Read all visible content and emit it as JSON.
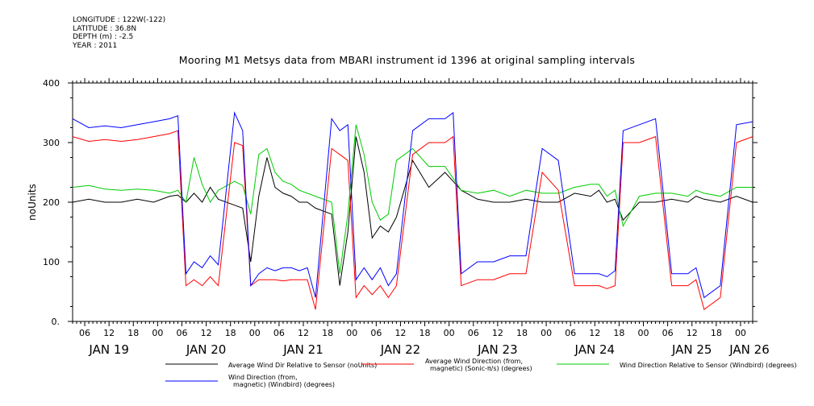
{
  "meta": {
    "longitude": "LONGITUDE : 122W(-122)",
    "latitude": "LATITUDE : 36.8N",
    "depth": "DEPTH (m) : -2.5",
    "year": "YEAR : 2011"
  },
  "chart_data": {
    "type": "line",
    "title": "Mooring M1 Metsys data from MBARI instrument id 1396 at original sampling intervals",
    "ylabel": "noUnits",
    "xlabel": "",
    "ylim": [
      0,
      400
    ],
    "y_ticks": [
      0,
      100,
      200,
      300,
      400
    ],
    "y_tick_labels": [
      "0.",
      "100",
      "200",
      "300",
      "400"
    ],
    "x_domain_hours": [
      0,
      168
    ],
    "hour_ticks": [
      "06",
      "12",
      "18",
      "00"
    ],
    "date_labels": [
      "JAN 19",
      "JAN 20",
      "JAN 21",
      "JAN 22",
      "JAN 23",
      "JAN 24",
      "JAN 25",
      "JAN 26"
    ],
    "legend": [
      {
        "label": "Average Wind Dir Relative to Sensor (noUnits)",
        "color": "#000000"
      },
      {
        "label": "Average Wind Direction (from, magnetic) (Sonic-π/s) (degrees)",
        "color": "#ff0000"
      },
      {
        "label": "Wind Direction Relative to Sensor (Windbird) (degrees)",
        "color": "#00cc00"
      },
      {
        "label": "Wind Direction (from, magnetic) (Windbird) (degrees)",
        "color": "#0000ff"
      }
    ],
    "series": [
      {
        "name": "Average Wind Dir Relative to Sensor (noUnits)",
        "color": "#000000",
        "x": [
          0,
          4,
          8,
          12,
          16,
          20,
          24,
          26,
          28,
          30,
          32,
          34,
          36,
          40,
          42,
          44,
          46,
          48,
          50,
          52,
          54,
          56,
          58,
          60,
          64,
          66,
          68,
          70,
          72,
          74,
          76,
          78,
          80,
          84,
          88,
          92,
          94,
          96,
          100,
          104,
          108,
          112,
          116,
          120,
          124,
          128,
          130,
          132,
          134,
          136,
          140,
          144,
          148,
          152,
          154,
          156,
          160,
          164,
          168
        ],
        "y": [
          200,
          205,
          200,
          200,
          205,
          200,
          210,
          212,
          200,
          215,
          200,
          225,
          205,
          195,
          190,
          100,
          210,
          275,
          225,
          215,
          210,
          200,
          200,
          190,
          180,
          60,
          150,
          310,
          250,
          140,
          160,
          150,
          175,
          270,
          225,
          250,
          235,
          220,
          205,
          200,
          200,
          205,
          200,
          200,
          215,
          210,
          220,
          200,
          205,
          170,
          200,
          200,
          205,
          200,
          210,
          205,
          200,
          210,
          200
        ]
      },
      {
        "name": "Average Wind Direction (from, magnetic) (Sonic-π/s) (degrees)",
        "color": "#ff0000",
        "x": [
          0,
          4,
          8,
          12,
          16,
          20,
          24,
          26,
          28,
          30,
          32,
          34,
          36,
          40,
          42,
          44,
          46,
          48,
          50,
          52,
          54,
          56,
          58,
          60,
          64,
          66,
          68,
          70,
          72,
          74,
          76,
          78,
          80,
          84,
          88,
          92,
          94,
          96,
          100,
          104,
          108,
          112,
          116,
          120,
          124,
          128,
          130,
          132,
          134,
          136,
          140,
          144,
          148,
          152,
          154,
          156,
          160,
          164,
          168
        ],
        "y": [
          310,
          302,
          305,
          302,
          305,
          310,
          315,
          320,
          60,
          70,
          60,
          75,
          60,
          300,
          295,
          60,
          70,
          70,
          70,
          68,
          70,
          70,
          70,
          20,
          290,
          280,
          270,
          40,
          60,
          45,
          60,
          40,
          60,
          280,
          300,
          300,
          310,
          60,
          70,
          70,
          80,
          80,
          250,
          220,
          60,
          60,
          60,
          55,
          60,
          300,
          300,
          310,
          60,
          60,
          70,
          20,
          40,
          300,
          310
        ]
      },
      {
        "name": "Wind Direction Relative to Sensor (Windbird) (degrees)",
        "color": "#00cc00",
        "x": [
          0,
          4,
          8,
          12,
          16,
          20,
          24,
          26,
          28,
          30,
          32,
          34,
          36,
          40,
          42,
          44,
          46,
          48,
          50,
          52,
          54,
          56,
          58,
          60,
          64,
          66,
          68,
          70,
          72,
          74,
          76,
          78,
          80,
          84,
          88,
          92,
          94,
          96,
          100,
          104,
          108,
          112,
          116,
          120,
          124,
          128,
          130,
          132,
          134,
          136,
          140,
          144,
          148,
          152,
          154,
          156,
          160,
          164,
          168
        ],
        "y": [
          225,
          228,
          222,
          220,
          222,
          220,
          215,
          220,
          200,
          275,
          230,
          200,
          220,
          235,
          228,
          180,
          280,
          290,
          250,
          235,
          230,
          220,
          215,
          210,
          200,
          80,
          180,
          330,
          280,
          200,
          170,
          180,
          270,
          290,
          260,
          260,
          240,
          220,
          215,
          220,
          210,
          220,
          215,
          215,
          225,
          230,
          230,
          210,
          220,
          160,
          210,
          215,
          215,
          210,
          220,
          215,
          210,
          225,
          225
        ]
      },
      {
        "name": "Wind Direction (from, magnetic) (Windbird) (degrees)",
        "color": "#0000ff",
        "x": [
          0,
          4,
          8,
          12,
          16,
          20,
          24,
          26,
          28,
          30,
          32,
          34,
          36,
          40,
          42,
          44,
          46,
          48,
          50,
          52,
          54,
          56,
          58,
          60,
          64,
          66,
          68,
          70,
          72,
          74,
          76,
          78,
          80,
          84,
          88,
          92,
          94,
          96,
          100,
          104,
          108,
          112,
          116,
          120,
          124,
          128,
          130,
          132,
          134,
          136,
          140,
          144,
          148,
          152,
          154,
          156,
          160,
          164,
          168
        ],
        "y": [
          340,
          325,
          328,
          325,
          330,
          335,
          340,
          345,
          80,
          100,
          90,
          110,
          95,
          350,
          320,
          60,
          80,
          90,
          85,
          90,
          90,
          85,
          90,
          40,
          340,
          320,
          330,
          70,
          90,
          70,
          90,
          60,
          80,
          320,
          340,
          340,
          350,
          80,
          100,
          100,
          110,
          110,
          290,
          270,
          80,
          80,
          80,
          75,
          85,
          320,
          330,
          340,
          80,
          80,
          90,
          40,
          60,
          330,
          335
        ]
      }
    ]
  }
}
